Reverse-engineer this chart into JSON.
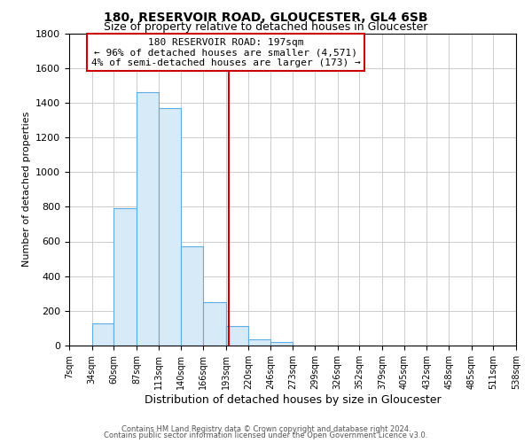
{
  "title": "180, RESERVOIR ROAD, GLOUCESTER, GL4 6SB",
  "subtitle": "Size of property relative to detached houses in Gloucester",
  "xlabel": "Distribution of detached houses by size in Gloucester",
  "ylabel": "Number of detached properties",
  "bar_edges": [
    7,
    34,
    60,
    87,
    113,
    140,
    166,
    193,
    220,
    246,
    273,
    299,
    326,
    352,
    379,
    405,
    432,
    458,
    485,
    511,
    538
  ],
  "bar_heights": [
    0,
    130,
    790,
    1460,
    1370,
    570,
    250,
    110,
    35,
    20,
    0,
    0,
    0,
    0,
    0,
    0,
    0,
    0,
    0,
    0
  ],
  "bar_color": "#d6eaf8",
  "bar_edgecolor": "#5dade2",
  "property_line_x": 197,
  "property_line_color": "#cc0000",
  "ylim": [
    0,
    1800
  ],
  "yticks": [
    0,
    200,
    400,
    600,
    800,
    1000,
    1200,
    1400,
    1600,
    1800
  ],
  "tick_labels": [
    "7sqm",
    "34sqm",
    "60sqm",
    "87sqm",
    "113sqm",
    "140sqm",
    "166sqm",
    "193sqm",
    "220sqm",
    "246sqm",
    "273sqm",
    "299sqm",
    "326sqm",
    "352sqm",
    "379sqm",
    "405sqm",
    "432sqm",
    "458sqm",
    "485sqm",
    "511sqm",
    "538sqm"
  ],
  "annotation_line1": "180 RESERVOIR ROAD: 197sqm",
  "annotation_line2": "← 96% of detached houses are smaller (4,571)",
  "annotation_line3": "4% of semi-detached houses are larger (173) →",
  "footnote1": "Contains HM Land Registry data © Crown copyright and database right 2024.",
  "footnote2": "Contains public sector information licensed under the Open Government Licence v3.0.",
  "grid_color": "#cccccc",
  "background_color": "#ffffff",
  "title_fontsize": 10,
  "subtitle_fontsize": 9,
  "ylabel_fontsize": 8,
  "xlabel_fontsize": 9,
  "tick_fontsize": 7,
  "annotation_fontsize": 8,
  "footnote_fontsize": 6
}
